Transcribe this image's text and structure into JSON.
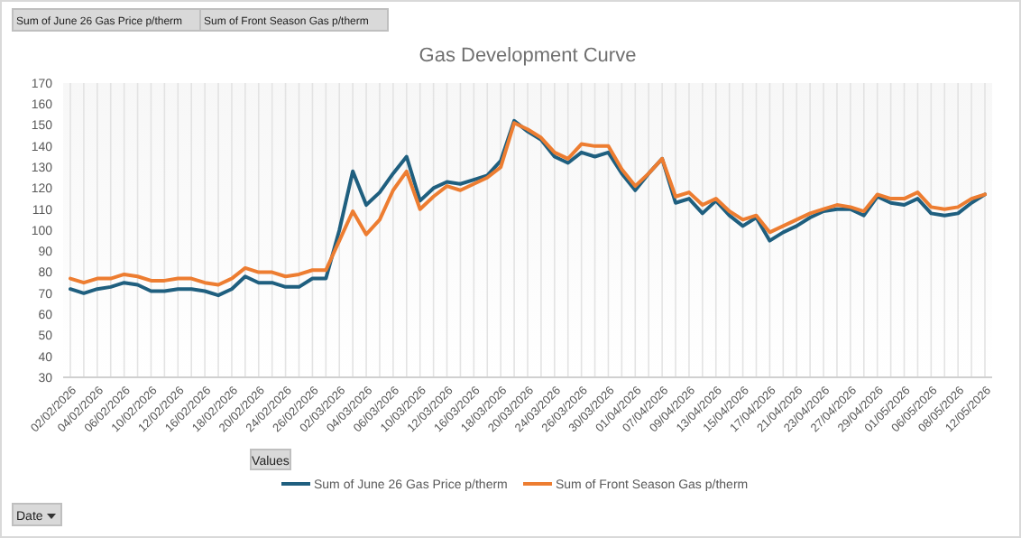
{
  "chart_data": {
    "type": "line",
    "title": "Gas Development Curve",
    "categories": [
      "02/02/2026",
      null,
      "04/02/2026",
      null,
      "06/02/2026",
      null,
      "10/02/2026",
      null,
      "12/02/2026",
      null,
      "16/02/2026",
      null,
      "18/02/2026",
      null,
      "20/02/2026",
      null,
      "24/02/2026",
      null,
      "26/02/2026",
      null,
      "02/03/2026",
      null,
      "04/03/2026",
      null,
      "06/03/2026",
      null,
      "10/03/2026",
      null,
      "12/03/2026",
      null,
      "16/03/2026",
      null,
      "18/03/2026",
      null,
      "20/03/2026",
      null,
      "24/03/2026",
      null,
      "26/03/2026",
      null,
      "30/03/2026",
      null,
      "01/04/2026",
      null,
      "07/04/2026",
      null,
      "09/04/2026",
      null,
      "13/04/2026",
      null,
      "15/04/2026",
      null,
      "17/04/2026",
      null,
      "21/04/2026",
      null,
      "23/04/2026",
      null,
      "27/04/2026",
      null,
      "29/04/2026",
      null,
      "01/05/2026",
      null,
      "06/05/2026",
      null,
      "08/05/2026",
      null,
      "12/05/2026"
    ],
    "series": [
      {
        "name": "Sum of June 26 Gas Price p/therm",
        "color": "#1f5f7f",
        "values": [
          72,
          70,
          72,
          73,
          75,
          74,
          71,
          71,
          72,
          72,
          71,
          69,
          72,
          78,
          75,
          75,
          73,
          73,
          77,
          77,
          100,
          128,
          112,
          118,
          127,
          135,
          114,
          120,
          123,
          122,
          124,
          126,
          133,
          152,
          147,
          143,
          135,
          132,
          137,
          135,
          137,
          127,
          119,
          127,
          134,
          113,
          115,
          108,
          114,
          107,
          102,
          106,
          95,
          99,
          102,
          106,
          109,
          110,
          110,
          107,
          116,
          113,
          112,
          115,
          108,
          107,
          108,
          113,
          117
        ]
      },
      {
        "name": "Sum of Front Season Gas p/therm",
        "color": "#ed7d31",
        "values": [
          77,
          75,
          77,
          77,
          79,
          78,
          76,
          76,
          77,
          77,
          75,
          74,
          77,
          82,
          80,
          80,
          78,
          79,
          81,
          81,
          95,
          109,
          98,
          105,
          119,
          128,
          110,
          116,
          121,
          119,
          122,
          125,
          130,
          151,
          148,
          144,
          137,
          134,
          141,
          140,
          140,
          129,
          121,
          127,
          134,
          116,
          118,
          112,
          115,
          109,
          105,
          107,
          99,
          102,
          105,
          108,
          110,
          112,
          111,
          109,
          117,
          115,
          115,
          118,
          111,
          110,
          111,
          115,
          117
        ]
      }
    ],
    "ylim": [
      30,
      170
    ],
    "yticks": [
      30,
      40,
      50,
      60,
      70,
      80,
      90,
      100,
      110,
      120,
      130,
      140,
      150,
      160,
      170
    ],
    "grid": "x",
    "legend": "bottom",
    "marker": "none",
    "line_style": "solid",
    "annotations": [
      "Sum of June 26 Gas Price p/therm",
      "Sum of Front Season Gas p/therm",
      "Values",
      "Date"
    ]
  }
}
